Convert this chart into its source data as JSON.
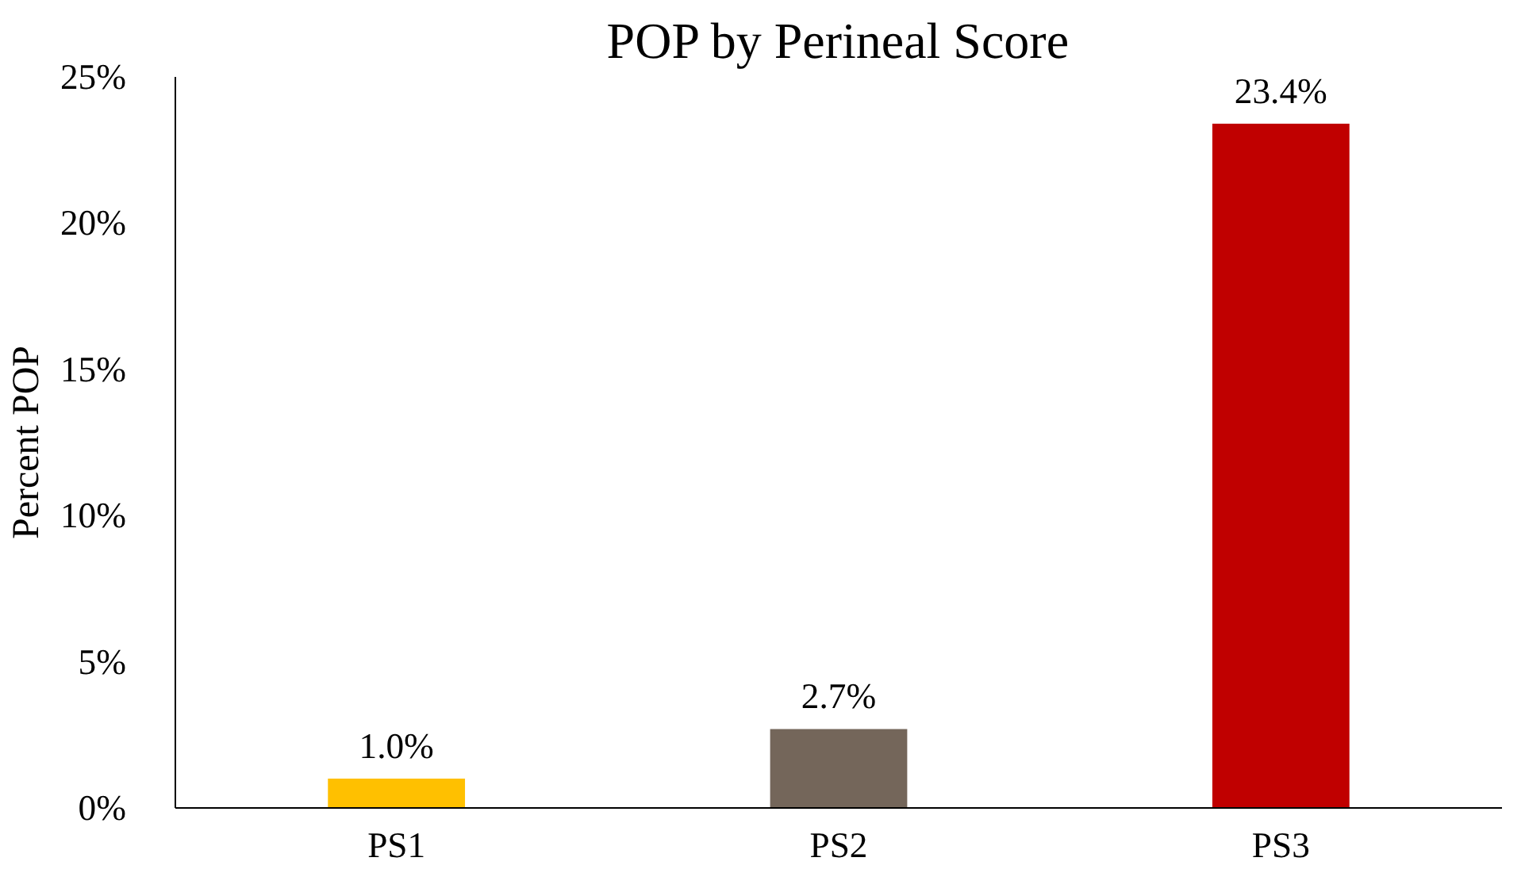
{
  "chart_data": {
    "type": "bar",
    "title": "POP by Perineal Score",
    "ylabel": "Percent POP",
    "categories": [
      "PS1",
      "PS2",
      "PS3"
    ],
    "values": [
      1.0,
      2.7,
      23.4
    ],
    "colors": [
      "#ffc000",
      "#74665a",
      "#c00000"
    ],
    "value_labels": [
      "1.0%",
      "2.7%",
      "23.4%"
    ],
    "ylim": [
      0,
      25
    ],
    "yticks": [
      {
        "value": 0,
        "label": "0%"
      },
      {
        "value": 5,
        "label": "5%"
      },
      {
        "value": 10,
        "label": "10%"
      },
      {
        "value": 15,
        "label": "15%"
      },
      {
        "value": 20,
        "label": "20%"
      },
      {
        "value": 25,
        "label": "25%"
      }
    ],
    "grid": false
  }
}
